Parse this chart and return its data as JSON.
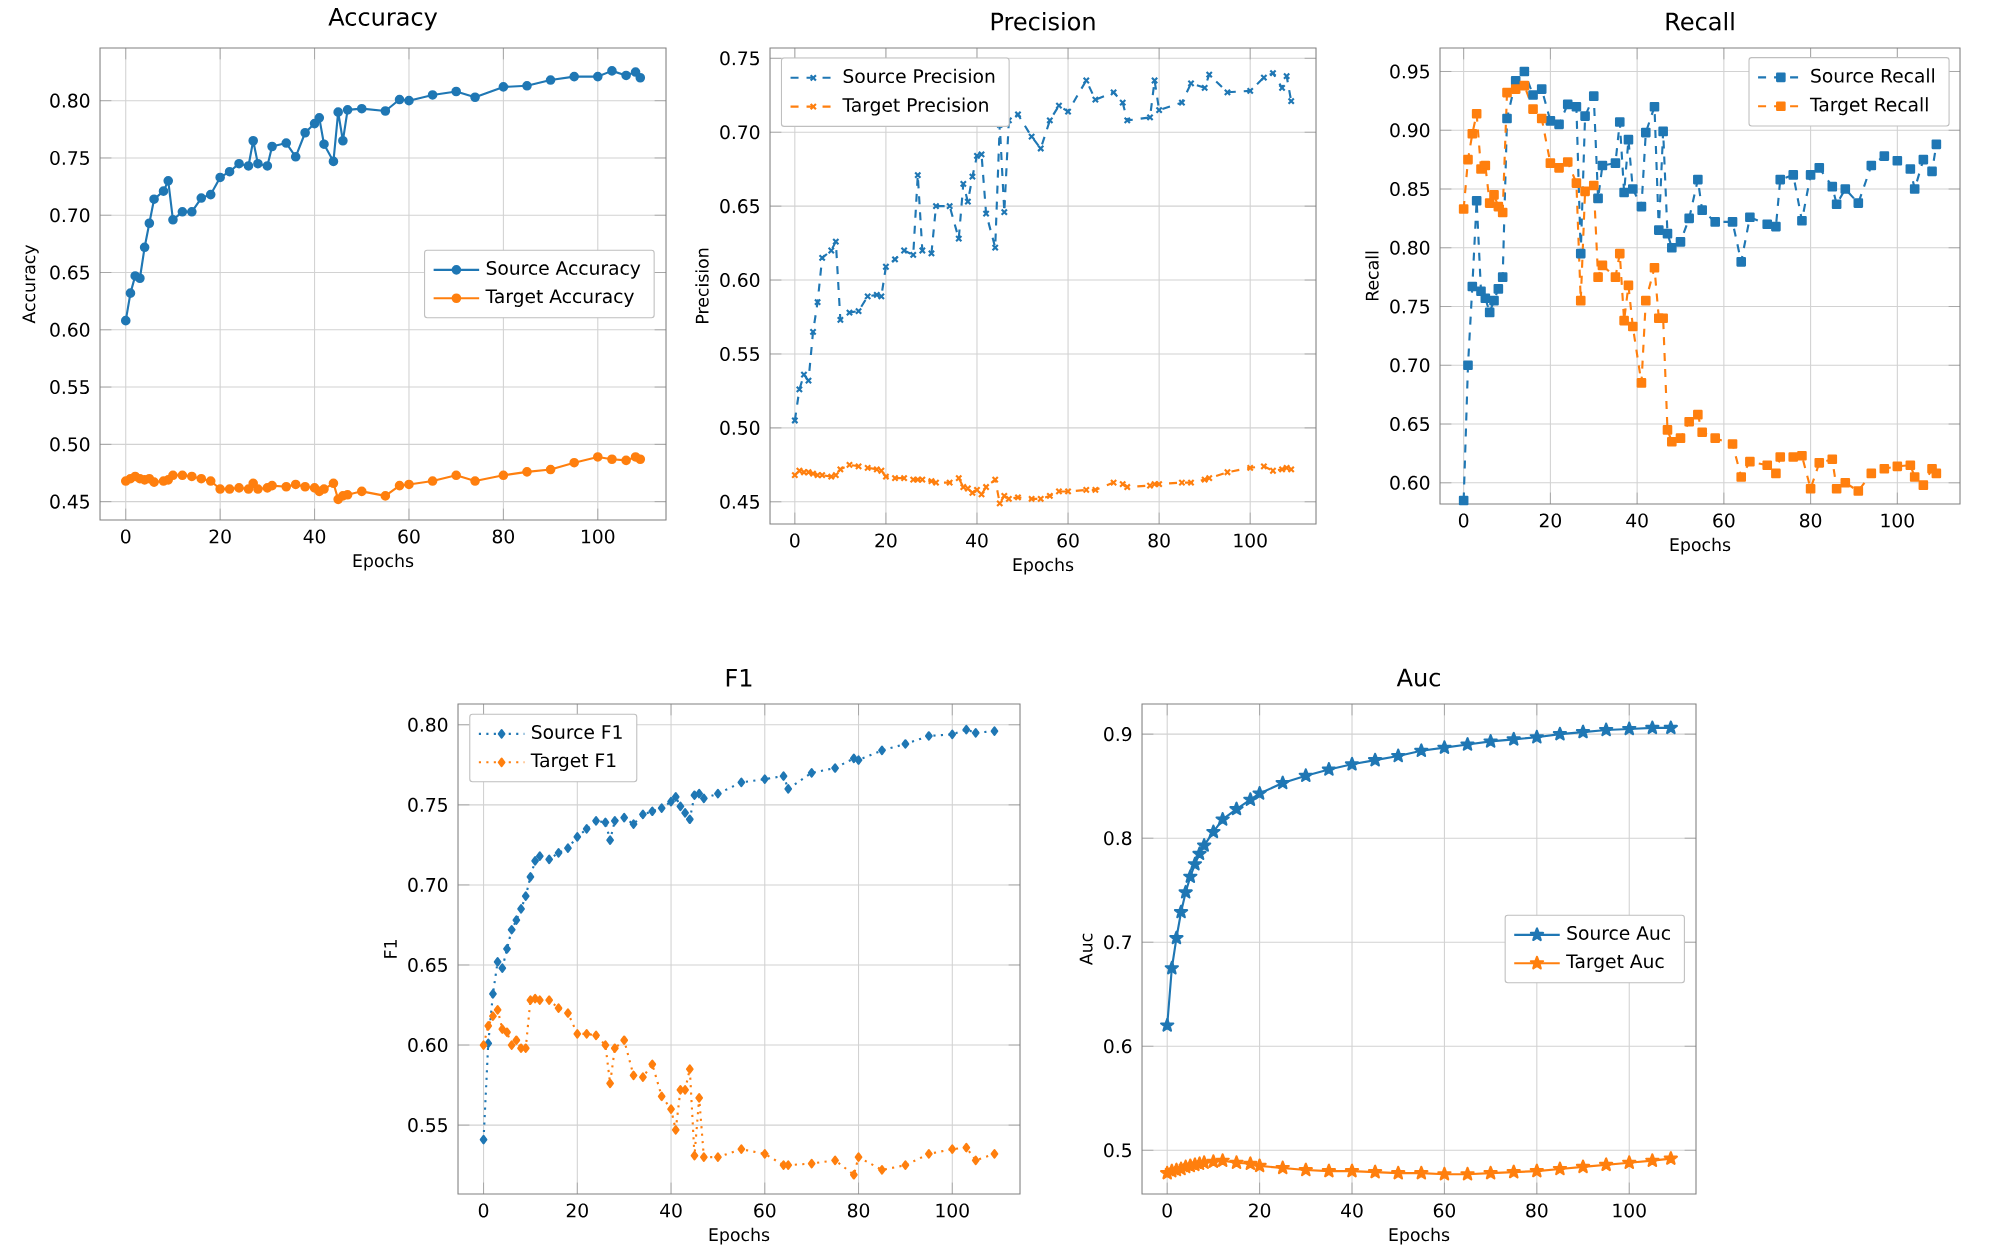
{
  "chart_data": [
    {
      "type": "line",
      "title": "Accuracy",
      "xlabel": "Epochs",
      "ylabel": "Accuracy",
      "xlim": [
        -5.45,
        114.45
      ],
      "ylim": [
        0.434,
        0.846
      ],
      "xticks": [
        0,
        20,
        40,
        60,
        80,
        100
      ],
      "yticks": [
        0.45,
        {
          "value": 0.5,
          "label": "0.50"
        },
        0.55,
        {
          "value": 0.6,
          "label": "0.60"
        },
        0.65,
        {
          "value": 0.7,
          "label": "0.70"
        },
        0.75,
        {
          "value": 0.8,
          "label": "0.80"
        }
      ],
      "grid": true,
      "legend": "right",
      "marker": "circle",
      "line_style": "solid",
      "x": [
        0,
        1,
        2,
        3,
        4,
        5,
        6,
        8,
        9,
        10,
        12,
        14,
        16,
        18,
        20,
        22,
        24,
        26,
        27,
        28,
        30,
        31,
        34,
        36,
        38,
        40,
        41,
        42,
        44,
        45,
        46,
        47,
        50,
        55,
        58,
        60,
        65,
        70,
        74,
        80,
        85,
        90,
        95,
        100,
        103,
        106,
        108,
        109
      ],
      "series": [
        {
          "name": "Source Accuracy",
          "color": "#1f77b4",
          "values": [
            0.608,
            0.632,
            0.647,
            0.645,
            0.672,
            0.693,
            0.714,
            0.721,
            0.73,
            0.696,
            0.703,
            0.703,
            0.715,
            0.718,
            0.733,
            0.738,
            0.745,
            0.743,
            0.765,
            0.745,
            0.743,
            0.76,
            0.763,
            0.751,
            0.772,
            0.78,
            0.785,
            0.762,
            0.747,
            0.79,
            0.765,
            0.792,
            0.793,
            0.791,
            0.801,
            0.8,
            0.805,
            0.808,
            0.803,
            0.812,
            0.813,
            0.818,
            0.821,
            0.821,
            0.826,
            0.822,
            0.825,
            0.82
          ]
        },
        {
          "name": "Target Accuracy",
          "color": "#ff7f0e",
          "values": [
            0.468,
            0.47,
            0.472,
            0.47,
            0.469,
            0.47,
            0.467,
            0.468,
            0.469,
            0.473,
            0.473,
            0.472,
            0.47,
            0.468,
            0.461,
            0.461,
            0.462,
            0.461,
            0.466,
            0.461,
            0.462,
            0.464,
            0.463,
            0.465,
            0.463,
            0.462,
            0.459,
            0.461,
            0.466,
            0.452,
            0.455,
            0.456,
            0.459,
            0.455,
            0.464,
            0.465,
            0.468,
            0.473,
            0.468,
            0.473,
            0.476,
            0.478,
            0.484,
            0.489,
            0.487,
            0.486,
            0.489,
            0.487
          ]
        }
      ]
    },
    {
      "type": "line",
      "title": "Precision",
      "xlabel": "Epochs",
      "ylabel": "Precision",
      "xlim": [
        -5.45,
        114.45
      ],
      "ylim": [
        0.435,
        0.757
      ],
      "xticks": [
        0,
        20,
        40,
        60,
        80,
        100
      ],
      "yticks": [
        0.45,
        {
          "value": 0.5,
          "label": "0.50"
        },
        0.55,
        {
          "value": 0.6,
          "label": "0.60"
        },
        0.65,
        {
          "value": 0.7,
          "label": "0.70"
        },
        0.75
      ],
      "grid": true,
      "legend": "top left",
      "marker": "cross",
      "line_style": "dashed",
      "x": [
        0,
        1,
        2,
        3,
        4,
        5,
        6,
        8,
        9,
        10,
        12,
        14,
        16,
        18,
        19,
        20,
        22,
        24,
        26,
        27,
        28,
        30,
        31,
        34,
        36,
        37,
        38,
        39,
        40,
        41,
        42,
        44,
        45,
        46,
        47,
        49,
        52,
        54,
        56,
        58,
        60,
        64,
        66,
        70,
        72,
        73,
        78,
        79,
        80,
        85,
        87,
        90,
        91,
        95,
        100,
        103,
        105,
        107,
        108,
        109
      ],
      "series": [
        {
          "name": "Source Precision",
          "color": "#1f77b4",
          "values": [
            0.505,
            0.526,
            0.536,
            0.532,
            0.565,
            0.585,
            0.615,
            0.62,
            0.626,
            0.573,
            0.578,
            0.579,
            0.589,
            0.59,
            0.589,
            0.609,
            0.614,
            0.62,
            0.617,
            0.671,
            0.62,
            0.618,
            0.65,
            0.65,
            0.628,
            0.665,
            0.653,
            0.67,
            0.684,
            0.685,
            0.645,
            0.622,
            0.705,
            0.646,
            0.708,
            0.712,
            0.697,
            0.689,
            0.708,
            0.718,
            0.714,
            0.735,
            0.722,
            0.727,
            0.72,
            0.708,
            0.71,
            0.735,
            0.715,
            0.72,
            0.733,
            0.73,
            0.739,
            0.727,
            0.728,
            0.737,
            0.74,
            0.73,
            0.738,
            0.721
          ]
        },
        {
          "name": "Target Precision",
          "color": "#ff7f0e",
          "values": [
            0.468,
            0.471,
            0.47,
            0.47,
            0.469,
            0.468,
            0.468,
            0.467,
            0.468,
            0.472,
            0.475,
            0.474,
            0.473,
            0.472,
            0.471,
            0.467,
            0.466,
            0.466,
            0.465,
            0.465,
            0.465,
            0.464,
            0.463,
            0.463,
            0.466,
            0.46,
            0.459,
            0.456,
            0.458,
            0.455,
            0.46,
            0.465,
            0.449,
            0.454,
            0.452,
            0.453,
            0.452,
            0.452,
            0.454,
            0.457,
            0.457,
            0.458,
            0.458,
            0.463,
            0.462,
            0.46,
            0.461,
            0.462,
            0.462,
            0.463,
            0.463,
            0.465,
            0.466,
            0.47,
            0.473,
            0.474,
            0.471,
            0.472,
            0.473,
            0.472
          ]
        }
      ]
    },
    {
      "type": "line",
      "title": "Recall",
      "xlabel": "Epochs",
      "ylabel": "Recall",
      "xlim": [
        -5.45,
        114.45
      ],
      "ylim": [
        0.582,
        0.97
      ],
      "xticks": [
        0,
        20,
        40,
        60,
        80,
        100
      ],
      "yticks": [
        {
          "value": 0.6,
          "label": "0.60"
        },
        0.65,
        {
          "value": 0.7,
          "label": "0.70"
        },
        0.75,
        {
          "value": 0.8,
          "label": "0.80"
        },
        0.85,
        {
          "value": 0.9,
          "label": "0.90"
        },
        0.95
      ],
      "grid": true,
      "legend": "top right",
      "marker": "square",
      "line_style": "dashed",
      "x": [
        0,
        1,
        2,
        3,
        4,
        5,
        6,
        7,
        8,
        9,
        10,
        12,
        14,
        16,
        18,
        20,
        22,
        24,
        26,
        27,
        28,
        30,
        31,
        32,
        35,
        36,
        37,
        38,
        39,
        41,
        42,
        44,
        45,
        46,
        47,
        48,
        50,
        52,
        54,
        55,
        58,
        62,
        64,
        66,
        70,
        72,
        73,
        76,
        78,
        80,
        82,
        85,
        86,
        88,
        91,
        94,
        97,
        100,
        103,
        104,
        106,
        108,
        109
      ],
      "series": [
        {
          "name": "Source Recall",
          "color": "#1f77b4",
          "values": [
            0.585,
            0.7,
            0.767,
            0.84,
            0.763,
            0.757,
            0.745,
            0.755,
            0.765,
            0.775,
            0.91,
            0.942,
            0.95,
            0.93,
            0.935,
            0.908,
            0.905,
            0.922,
            0.92,
            0.795,
            0.912,
            0.929,
            0.842,
            0.87,
            0.872,
            0.907,
            0.847,
            0.892,
            0.85,
            0.835,
            0.898,
            0.92,
            0.815,
            0.899,
            0.812,
            0.8,
            0.805,
            0.825,
            0.858,
            0.832,
            0.822,
            0.822,
            0.788,
            0.826,
            0.82,
            0.818,
            0.858,
            0.862,
            0.823,
            0.862,
            0.868,
            0.852,
            0.837,
            0.85,
            0.838,
            0.87,
            0.878,
            0.874,
            0.867,
            0.85,
            0.875,
            0.865,
            0.888
          ]
        },
        {
          "name": "Target Recall",
          "color": "#ff7f0e",
          "values": [
            0.833,
            0.875,
            0.897,
            0.914,
            0.867,
            0.87,
            0.838,
            0.845,
            0.835,
            0.83,
            0.932,
            0.935,
            0.938,
            0.918,
            0.91,
            0.872,
            0.868,
            0.873,
            0.855,
            0.755,
            0.848,
            0.853,
            0.775,
            0.785,
            0.775,
            0.795,
            0.738,
            0.768,
            0.733,
            0.685,
            0.755,
            0.783,
            0.74,
            0.74,
            0.645,
            0.635,
            0.638,
            0.652,
            0.658,
            0.643,
            0.638,
            0.633,
            0.605,
            0.618,
            0.615,
            0.608,
            0.622,
            0.622,
            0.623,
            0.595,
            0.617,
            0.62,
            0.595,
            0.6,
            0.593,
            0.608,
            0.612,
            0.614,
            0.615,
            0.605,
            0.598,
            0.612,
            0.608
          ]
        }
      ]
    },
    {
      "type": "line",
      "title": "F1",
      "xlabel": "Epochs",
      "ylabel": "F1",
      "xlim": [
        -5.45,
        114.45
      ],
      "ylim": [
        0.507,
        0.813
      ],
      "xticks": [
        0,
        20,
        40,
        60,
        80,
        100
      ],
      "yticks": [
        0.55,
        {
          "value": 0.6,
          "label": "0.60"
        },
        0.65,
        {
          "value": 0.7,
          "label": "0.70"
        },
        0.75,
        {
          "value": 0.8,
          "label": "0.80"
        }
      ],
      "grid": true,
      "legend": "top left",
      "marker": "diamond",
      "line_style": "dotted",
      "x": [
        0,
        1,
        2,
        3,
        4,
        5,
        6,
        7,
        8,
        9,
        10,
        11,
        12,
        14,
        16,
        18,
        20,
        22,
        24,
        26,
        27,
        28,
        30,
        32,
        34,
        36,
        38,
        40,
        41,
        42,
        43,
        44,
        45,
        46,
        47,
        50,
        55,
        60,
        64,
        65,
        70,
        75,
        79,
        80,
        85,
        90,
        95,
        100,
        103,
        105,
        109
      ],
      "series": [
        {
          "name": "Source F1",
          "color": "#1f77b4",
          "values": [
            0.541,
            0.601,
            0.632,
            0.652,
            0.648,
            0.66,
            0.672,
            0.678,
            0.685,
            0.693,
            0.705,
            0.715,
            0.718,
            0.716,
            0.72,
            0.723,
            0.73,
            0.735,
            0.74,
            0.739,
            0.728,
            0.74,
            0.742,
            0.738,
            0.744,
            0.746,
            0.748,
            0.752,
            0.755,
            0.749,
            0.745,
            0.741,
            0.756,
            0.757,
            0.754,
            0.757,
            0.764,
            0.766,
            0.768,
            0.76,
            0.77,
            0.773,
            0.779,
            0.778,
            0.784,
            0.788,
            0.793,
            0.794,
            0.797,
            0.795,
            0.796
          ]
        },
        {
          "name": "Target F1",
          "color": "#ff7f0e",
          "values": [
            0.6,
            0.612,
            0.618,
            0.622,
            0.61,
            0.608,
            0.6,
            0.603,
            0.598,
            0.598,
            0.628,
            0.629,
            0.628,
            0.628,
            0.623,
            0.62,
            0.607,
            0.607,
            0.606,
            0.6,
            0.576,
            0.598,
            0.603,
            0.581,
            0.58,
            0.588,
            0.568,
            0.56,
            0.547,
            0.572,
            0.572,
            0.585,
            0.531,
            0.567,
            0.53,
            0.53,
            0.535,
            0.532,
            0.525,
            0.525,
            0.526,
            0.528,
            0.519,
            0.53,
            0.522,
            0.525,
            0.532,
            0.535,
            0.536,
            0.528,
            0.532
          ]
        }
      ]
    },
    {
      "type": "line",
      "title": "Auc",
      "xlabel": "Epochs",
      "ylabel": "Auc",
      "xlim": [
        -5.45,
        114.45
      ],
      "ylim": [
        0.458,
        0.929
      ],
      "xticks": [
        0,
        20,
        40,
        60,
        80,
        100
      ],
      "yticks": [
        0.5,
        0.6,
        0.7,
        0.8,
        0.9
      ],
      "grid": true,
      "legend": "right",
      "marker": "star",
      "line_style": "solid",
      "x": [
        0,
        1,
        2,
        3,
        4,
        5,
        6,
        7,
        8,
        10,
        12,
        15,
        18,
        20,
        25,
        30,
        35,
        40,
        45,
        50,
        55,
        60,
        65,
        70,
        75,
        80,
        85,
        90,
        95,
        100,
        105,
        109
      ],
      "series": [
        {
          "name": "Source Auc",
          "color": "#1f77b4",
          "values": [
            0.62,
            0.675,
            0.704,
            0.729,
            0.748,
            0.763,
            0.775,
            0.785,
            0.793,
            0.806,
            0.818,
            0.828,
            0.837,
            0.843,
            0.853,
            0.86,
            0.866,
            0.871,
            0.875,
            0.879,
            0.884,
            0.887,
            0.89,
            0.893,
            0.895,
            0.897,
            0.9,
            0.902,
            0.904,
            0.905,
            0.906,
            0.906
          ]
        },
        {
          "name": "Target Auc",
          "color": "#ff7f0e",
          "values": [
            0.478,
            0.48,
            0.481,
            0.482,
            0.484,
            0.485,
            0.486,
            0.487,
            0.488,
            0.489,
            0.49,
            0.488,
            0.487,
            0.485,
            0.483,
            0.481,
            0.48,
            0.48,
            0.479,
            0.478,
            0.478,
            0.477,
            0.477,
            0.478,
            0.479,
            0.48,
            0.482,
            0.484,
            0.486,
            0.488,
            0.49,
            0.492
          ]
        }
      ]
    }
  ]
}
